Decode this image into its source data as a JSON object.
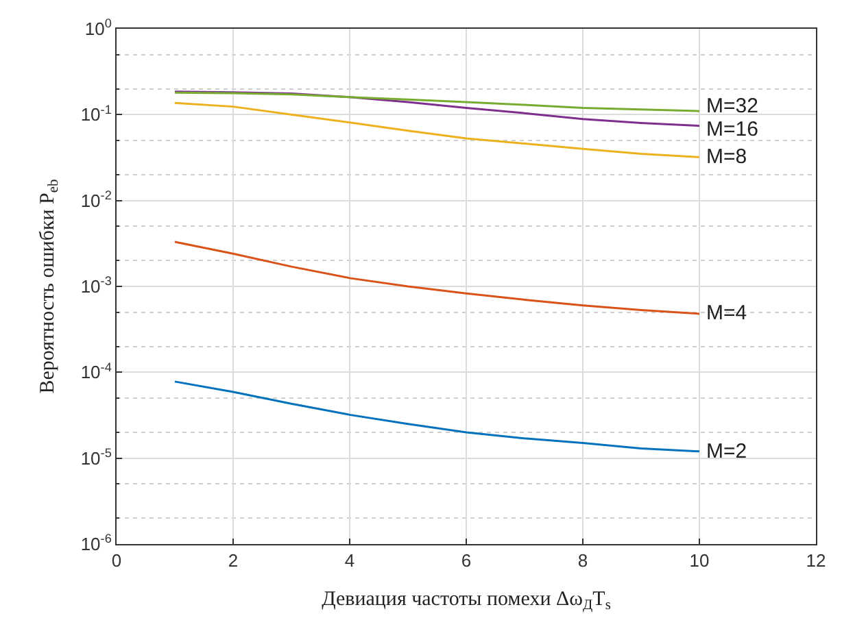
{
  "chart_data": {
    "type": "line",
    "xlabel": "Девиация частоты помехи Δω$_{Д}$T$_{s}$",
    "ylabel": "Вероятность ошибки P$_{eb}$",
    "x": [
      1,
      2,
      3,
      4,
      5,
      6,
      7,
      8,
      9,
      10
    ],
    "series": [
      {
        "name": "M=2",
        "color": "#0072bd",
        "values": [
          7.8e-05,
          5.9e-05,
          4.3e-05,
          3.2e-05,
          2.5e-05,
          2e-05,
          1.7e-05,
          1.5e-05,
          1.3e-05,
          1.2e-05
        ]
      },
      {
        "name": "M=4",
        "color": "#d95319",
        "values": [
          0.0033,
          0.0024,
          0.0017,
          0.00125,
          0.001,
          0.00083,
          0.0007,
          0.0006,
          0.00053,
          0.00048
        ]
      },
      {
        "name": "M=8",
        "color": "#edb120",
        "values": [
          0.137,
          0.124,
          0.1,
          0.081,
          0.065,
          0.053,
          0.046,
          0.04,
          0.035,
          0.032
        ]
      },
      {
        "name": "M=16",
        "color": "#7e2f8e",
        "values": [
          0.185,
          0.182,
          0.176,
          0.16,
          0.14,
          0.12,
          0.104,
          0.089,
          0.08,
          0.074
        ]
      },
      {
        "name": "M=32",
        "color": "#77ac30",
        "values": [
          0.18,
          0.178,
          0.172,
          0.16,
          0.15,
          0.14,
          0.13,
          0.12,
          0.115,
          0.11
        ]
      }
    ],
    "log": "y",
    "grid": true,
    "legend": false,
    "line_style": "solid",
    "marker": "none",
    "xlim": [
      0,
      12
    ],
    "xticks": [
      0,
      2,
      4,
      6,
      8,
      10,
      12
    ],
    "ylim": [
      1e-06,
      1
    ],
    "yticks": [
      {
        "value": 1e-06,
        "label": "10$^{-6}$"
      },
      {
        "value": 1e-05,
        "label": "10$^{-5}$"
      },
      {
        "value": 0.0001,
        "label": "10$^{-4}$"
      },
      {
        "value": 0.001,
        "label": "10$^{-3}$"
      },
      {
        "value": 0.01,
        "label": "10$^{-2}$"
      },
      {
        "value": 0.1,
        "label": "10$^{-1}$"
      },
      {
        "value": 1,
        "label": "10$^{0}$"
      }
    ]
  }
}
